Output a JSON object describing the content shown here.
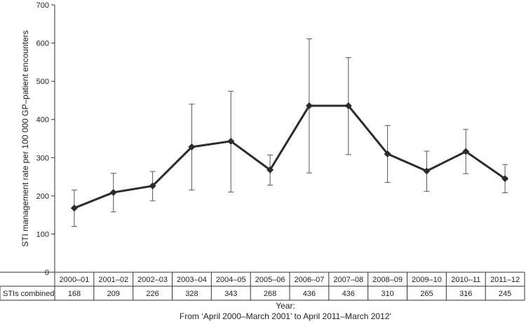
{
  "chart_data": {
    "type": "line",
    "ylabel": "STI management rate per 100 000 GP–patient encounters",
    "xlabel": "Year:",
    "xlabel_sub": "From ‘April 2000–March 2001’ to April 2011–March 2012’",
    "ylim": [
      0,
      700
    ],
    "yticks": [
      0,
      100,
      200,
      300,
      400,
      500,
      600,
      700
    ],
    "categories": [
      "2000–01",
      "2001–02",
      "2002–03",
      "2003–04",
      "2004–05",
      "2005–06",
      "2006–07",
      "2007–08",
      "2008–09",
      "2009–10",
      "2010–11",
      "2011–12"
    ],
    "series": [
      {
        "values": [
          168,
          209,
          226,
          328,
          343,
          268,
          436,
          436,
          310,
          265,
          316,
          245
        ],
        "error_low": [
          120,
          158,
          187,
          215,
          210,
          228,
          260,
          308,
          235,
          212,
          258,
          208
        ],
        "error_high": [
          215,
          259,
          264,
          440,
          474,
          307,
          611,
          562,
          384,
          317,
          374,
          282
        ]
      }
    ],
    "table": {
      "row_label": "STIs combined",
      "values": [
        "168",
        "209",
        "226",
        "328",
        "343",
        "268",
        "436",
        "436",
        "310",
        "265",
        "316",
        "245"
      ]
    },
    "grid": false,
    "colors": {
      "line": "#2b2b2b",
      "axis": "#333333",
      "error_bar": "#555555"
    }
  }
}
